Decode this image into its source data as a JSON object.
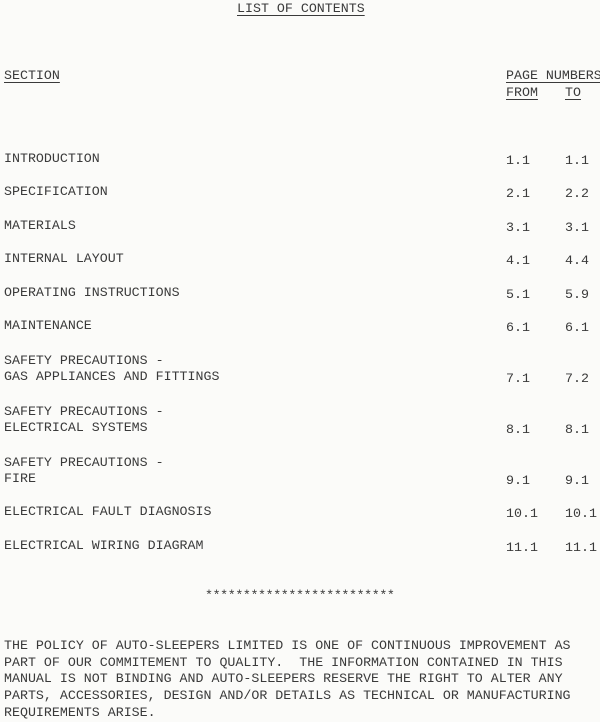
{
  "title": "LIST OF CONTENTS",
  "headers": {
    "section": "SECTION",
    "page_numbers": "PAGE NUMBERS",
    "from": "FROM",
    "to": "TO"
  },
  "rows": [
    {
      "section": "INTRODUCTION",
      "from": "1.1",
      "to": "1.1"
    },
    {
      "section": "SPECIFICATION",
      "from": "2.1",
      "to": "2.2"
    },
    {
      "section": "MATERIALS",
      "from": "3.1",
      "to": "3.1"
    },
    {
      "section": "INTERNAL LAYOUT",
      "from": "4.1",
      "to": "4.4"
    },
    {
      "section": "OPERATING INSTRUCTIONS",
      "from": "5.1",
      "to": "5.9"
    },
    {
      "section": "MAINTENANCE",
      "from": "6.1",
      "to": "6.1"
    },
    {
      "section": "SAFETY PRECAUTIONS -\nGAS APPLIANCES AND FITTINGS",
      "from": "7.1",
      "to": "7.2"
    },
    {
      "section": "SAFETY PRECAUTIONS -\nELECTRICAL SYSTEMS",
      "from": "8.1",
      "to": "8.1"
    },
    {
      "section": "SAFETY PRECAUTIONS -\nFIRE",
      "from": "9.1",
      "to": "9.1"
    },
    {
      "section": "ELECTRICAL FAULT DIAGNOSIS",
      "from": "10.1",
      "to": "10.1"
    },
    {
      "section": "ELECTRICAL WIRING DIAGRAM",
      "from": "11.1",
      "to": "11.1"
    }
  ],
  "separator": "*************************",
  "disclaimer": "THE POLICY OF AUTO-SLEEPERS LIMITED IS ONE OF CONTINUOUS IMPROVEMENT AS\nPART OF OUR COMMITEMENT TO QUALITY.  THE INFORMATION CONTAINED IN THIS\nMANUAL IS NOT BINDING AND AUTO-SLEEPERS RESERVE THE RIGHT TO ALTER ANY\nPARTS, ACCESSORIES, DESIGN AND/OR DETAILS AS TECHNICAL OR MANUFACTURING\nREQUIREMENTS ARISE."
}
